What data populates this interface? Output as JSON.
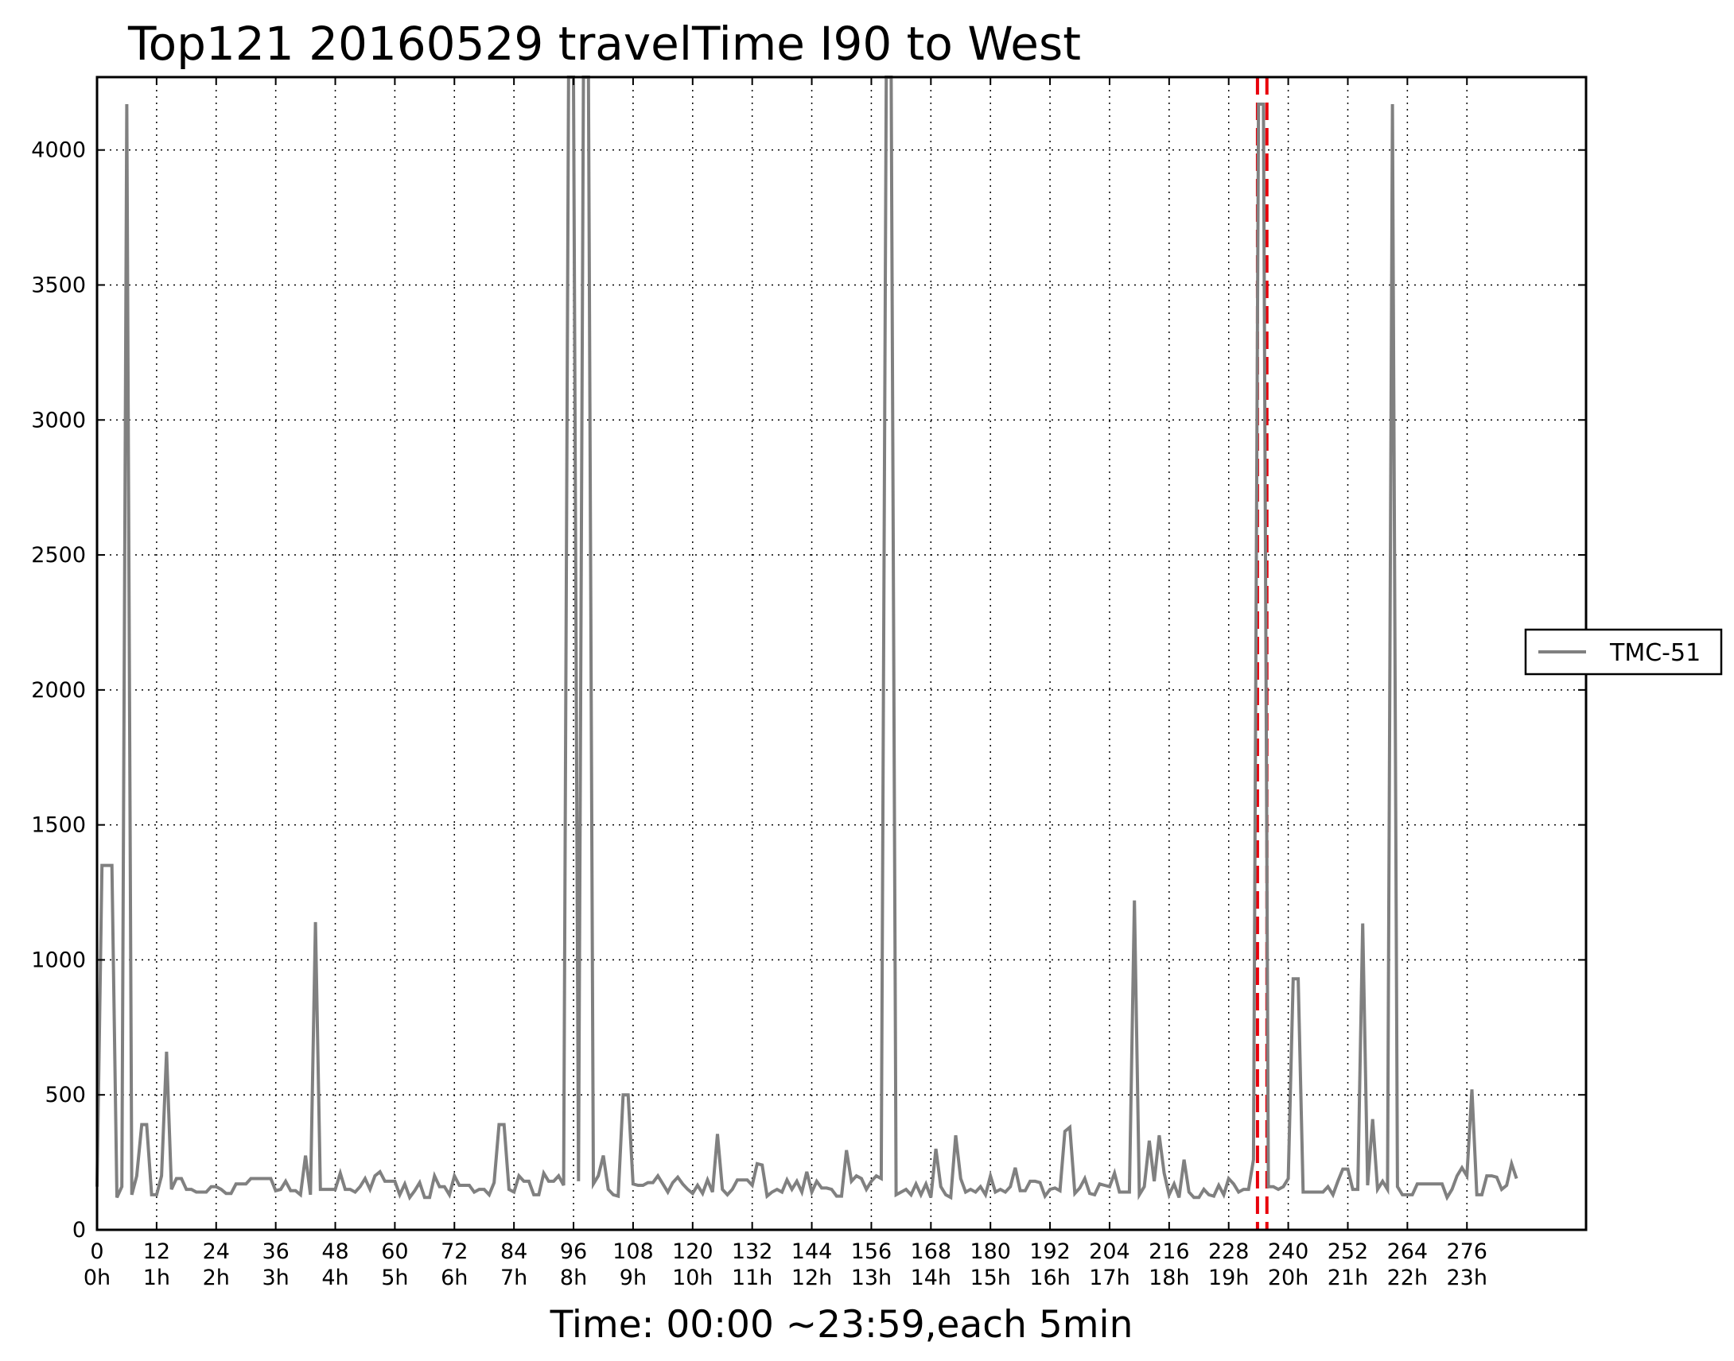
{
  "chart_data": {
    "type": "line",
    "title": "Top121 20160529 travelTime I90 to West",
    "xlabel": "Time: 00:00 ~23:59,each 5min",
    "ylabel": "",
    "xlim": [
      0,
      300
    ],
    "ylim": [
      0,
      4270
    ],
    "grid": true,
    "legend_position": "right",
    "y_ticks": [
      0,
      500,
      1000,
      1500,
      2000,
      2500,
      3000,
      3500,
      4000
    ],
    "x_ticks": [
      {
        "value": 0,
        "label": "0",
        "hour": "0h"
      },
      {
        "value": 12,
        "label": "12",
        "hour": "1h"
      },
      {
        "value": 24,
        "label": "24",
        "hour": "2h"
      },
      {
        "value": 36,
        "label": "36",
        "hour": "3h"
      },
      {
        "value": 48,
        "label": "48",
        "hour": "4h"
      },
      {
        "value": 60,
        "label": "60",
        "hour": "5h"
      },
      {
        "value": 72,
        "label": "72",
        "hour": "6h"
      },
      {
        "value": 84,
        "label": "84",
        "hour": "7h"
      },
      {
        "value": 96,
        "label": "96",
        "hour": "8h"
      },
      {
        "value": 108,
        "label": "108",
        "hour": "9h"
      },
      {
        "value": 120,
        "label": "120",
        "hour": "10h"
      },
      {
        "value": 132,
        "label": "132",
        "hour": "11h"
      },
      {
        "value": 144,
        "label": "144",
        "hour": "12h"
      },
      {
        "value": 156,
        "label": "156",
        "hour": "13h"
      },
      {
        "value": 168,
        "label": "168",
        "hour": "14h"
      },
      {
        "value": 180,
        "label": "180",
        "hour": "15h"
      },
      {
        "value": 192,
        "label": "192",
        "hour": "16h"
      },
      {
        "value": 204,
        "label": "204",
        "hour": "17h"
      },
      {
        "value": 216,
        "label": "216",
        "hour": "18h"
      },
      {
        "value": 228,
        "label": "228",
        "hour": "19h"
      },
      {
        "value": 240,
        "label": "240",
        "hour": "20h"
      },
      {
        "value": 252,
        "label": "252",
        "hour": "21h"
      },
      {
        "value": 264,
        "label": "264",
        "hour": "22h"
      },
      {
        "value": 276,
        "label": "276",
        "hour": "23h"
      }
    ],
    "vlines": [
      {
        "x": 233.8,
        "color": "#e8000b",
        "style": "dashed"
      },
      {
        "x": 235.7,
        "color": "#e8000b",
        "style": "dashed"
      }
    ],
    "series": [
      {
        "name": "TMC-51",
        "color": "#808080",
        "points": [
          [
            0,
            160
          ],
          [
            1,
            1350
          ],
          [
            2,
            1350
          ],
          [
            3,
            1350
          ],
          [
            4,
            120
          ],
          [
            5,
            160
          ],
          [
            6,
            4170
          ],
          [
            7,
            130
          ],
          [
            8,
            200
          ],
          [
            9,
            390
          ],
          [
            10,
            390
          ],
          [
            11,
            130
          ],
          [
            12,
            130
          ],
          [
            13,
            200
          ],
          [
            14,
            660
          ],
          [
            15,
            150
          ],
          [
            16,
            190
          ],
          [
            17,
            190
          ],
          [
            18,
            150
          ],
          [
            19,
            150
          ],
          [
            20,
            140
          ],
          [
            21,
            140
          ],
          [
            22,
            140
          ],
          [
            23,
            160
          ],
          [
            24,
            160
          ],
          [
            25,
            150
          ],
          [
            26,
            135
          ],
          [
            27,
            135
          ],
          [
            28,
            170
          ],
          [
            29,
            170
          ],
          [
            30,
            170
          ],
          [
            31,
            190
          ],
          [
            32,
            190
          ],
          [
            33,
            190
          ],
          [
            34,
            190
          ],
          [
            35,
            190
          ],
          [
            36,
            145
          ],
          [
            37,
            150
          ],
          [
            38,
            180
          ],
          [
            39,
            145
          ],
          [
            40,
            145
          ],
          [
            41,
            130
          ],
          [
            42,
            275
          ],
          [
            43,
            130
          ],
          [
            44,
            1140
          ],
          [
            45,
            150
          ],
          [
            46,
            150
          ],
          [
            47,
            150
          ],
          [
            48,
            150
          ],
          [
            49,
            210
          ],
          [
            50,
            150
          ],
          [
            51,
            150
          ],
          [
            52,
            140
          ],
          [
            53,
            160
          ],
          [
            54,
            190
          ],
          [
            55,
            150
          ],
          [
            56,
            200
          ],
          [
            57,
            215
          ],
          [
            58,
            180
          ],
          [
            59,
            180
          ],
          [
            60,
            180
          ],
          [
            61,
            130
          ],
          [
            62,
            170
          ],
          [
            63,
            120
          ],
          [
            64,
            145
          ],
          [
            65,
            175
          ],
          [
            66,
            120
          ],
          [
            67,
            120
          ],
          [
            68,
            200
          ],
          [
            69,
            160
          ],
          [
            70,
            160
          ],
          [
            71,
            130
          ],
          [
            72,
            200
          ],
          [
            73,
            165
          ],
          [
            74,
            165
          ],
          [
            75,
            165
          ],
          [
            76,
            140
          ],
          [
            77,
            150
          ],
          [
            78,
            150
          ],
          [
            79,
            130
          ],
          [
            80,
            175
          ],
          [
            81,
            390
          ],
          [
            82,
            390
          ],
          [
            83,
            150
          ],
          [
            84,
            140
          ],
          [
            85,
            200
          ],
          [
            86,
            180
          ],
          [
            87,
            180
          ],
          [
            88,
            130
          ],
          [
            89,
            130
          ],
          [
            90,
            210
          ],
          [
            91,
            180
          ],
          [
            92,
            180
          ],
          [
            93,
            200
          ],
          [
            94,
            165
          ],
          [
            95,
            4270
          ],
          [
            96,
            4270
          ],
          [
            97,
            180
          ],
          [
            98,
            4270
          ],
          [
            99,
            4270
          ],
          [
            100,
            170
          ],
          [
            101,
            200
          ],
          [
            102,
            275
          ],
          [
            103,
            150
          ],
          [
            104,
            130
          ],
          [
            105,
            125
          ],
          [
            106,
            500
          ],
          [
            107,
            500
          ],
          [
            108,
            170
          ],
          [
            109,
            165
          ],
          [
            110,
            165
          ],
          [
            111,
            175
          ],
          [
            112,
            175
          ],
          [
            113,
            200
          ],
          [
            114,
            170
          ],
          [
            115,
            140
          ],
          [
            116,
            175
          ],
          [
            117,
            195
          ],
          [
            118,
            170
          ],
          [
            119,
            150
          ],
          [
            120,
            135
          ],
          [
            121,
            165
          ],
          [
            122,
            135
          ],
          [
            123,
            185
          ],
          [
            124,
            140
          ],
          [
            125,
            355
          ],
          [
            126,
            150
          ],
          [
            127,
            130
          ],
          [
            128,
            150
          ],
          [
            129,
            185
          ],
          [
            130,
            185
          ],
          [
            131,
            185
          ],
          [
            132,
            165
          ],
          [
            133,
            245
          ],
          [
            134,
            240
          ],
          [
            135,
            125
          ],
          [
            136,
            140
          ],
          [
            137,
            150
          ],
          [
            138,
            140
          ],
          [
            139,
            185
          ],
          [
            140,
            150
          ],
          [
            141,
            180
          ],
          [
            142,
            140
          ],
          [
            143,
            215
          ],
          [
            144,
            140
          ],
          [
            145,
            180
          ],
          [
            146,
            155
          ],
          [
            147,
            155
          ],
          [
            148,
            150
          ],
          [
            149,
            125
          ],
          [
            150,
            125
          ],
          [
            151,
            295
          ],
          [
            152,
            180
          ],
          [
            153,
            200
          ],
          [
            154,
            190
          ],
          [
            155,
            150
          ],
          [
            156,
            180
          ],
          [
            157,
            200
          ],
          [
            158,
            190
          ],
          [
            159,
            4270
          ],
          [
            160,
            4270
          ],
          [
            161,
            130
          ],
          [
            162,
            140
          ],
          [
            163,
            150
          ],
          [
            164,
            130
          ],
          [
            165,
            170
          ],
          [
            166,
            130
          ],
          [
            167,
            170
          ],
          [
            168,
            120
          ],
          [
            169,
            300
          ],
          [
            170,
            160
          ],
          [
            171,
            130
          ],
          [
            172,
            120
          ],
          [
            173,
            350
          ],
          [
            174,
            190
          ],
          [
            175,
            140
          ],
          [
            176,
            150
          ],
          [
            177,
            140
          ],
          [
            178,
            160
          ],
          [
            179,
            130
          ],
          [
            180,
            200
          ],
          [
            181,
            140
          ],
          [
            182,
            150
          ],
          [
            183,
            140
          ],
          [
            184,
            160
          ],
          [
            185,
            230
          ],
          [
            186,
            145
          ],
          [
            187,
            145
          ],
          [
            188,
            180
          ],
          [
            189,
            180
          ],
          [
            190,
            175
          ],
          [
            191,
            125
          ],
          [
            192,
            150
          ],
          [
            193,
            155
          ],
          [
            194,
            145
          ],
          [
            195,
            365
          ],
          [
            196,
            380
          ],
          [
            197,
            135
          ],
          [
            198,
            155
          ],
          [
            199,
            190
          ],
          [
            200,
            135
          ],
          [
            201,
            130
          ],
          [
            202,
            170
          ],
          [
            203,
            165
          ],
          [
            204,
            160
          ],
          [
            205,
            210
          ],
          [
            206,
            140
          ],
          [
            207,
            140
          ],
          [
            208,
            140
          ],
          [
            209,
            1220
          ],
          [
            210,
            130
          ],
          [
            211,
            160
          ],
          [
            212,
            330
          ],
          [
            213,
            180
          ],
          [
            214,
            350
          ],
          [
            215,
            210
          ],
          [
            216,
            130
          ],
          [
            217,
            170
          ],
          [
            218,
            120
          ],
          [
            219,
            260
          ],
          [
            220,
            140
          ],
          [
            221,
            120
          ],
          [
            222,
            120
          ],
          [
            223,
            150
          ],
          [
            224,
            130
          ],
          [
            225,
            125
          ],
          [
            226,
            165
          ],
          [
            227,
            130
          ],
          [
            228,
            190
          ],
          [
            229,
            170
          ],
          [
            230,
            140
          ],
          [
            231,
            150
          ],
          [
            232,
            150
          ],
          [
            233,
            260
          ],
          [
            234,
            4170
          ],
          [
            235,
            4170
          ],
          [
            236,
            160
          ],
          [
            237,
            160
          ],
          [
            238,
            150
          ],
          [
            239,
            160
          ],
          [
            240,
            190
          ],
          [
            241,
            930
          ],
          [
            242,
            930
          ],
          [
            243,
            140
          ],
          [
            244,
            140
          ],
          [
            245,
            140
          ],
          [
            246,
            140
          ],
          [
            247,
            140
          ],
          [
            248,
            160
          ],
          [
            249,
            130
          ],
          [
            250,
            180
          ],
          [
            251,
            225
          ],
          [
            252,
            225
          ],
          [
            253,
            150
          ],
          [
            254,
            150
          ],
          [
            255,
            1135
          ],
          [
            256,
            165
          ],
          [
            257,
            410
          ],
          [
            258,
            150
          ],
          [
            259,
            180
          ],
          [
            260,
            150
          ],
          [
            261,
            4170
          ],
          [
            262,
            160
          ],
          [
            263,
            130
          ],
          [
            264,
            130
          ],
          [
            265,
            130
          ],
          [
            266,
            170
          ],
          [
            267,
            170
          ],
          [
            268,
            170
          ],
          [
            269,
            170
          ],
          [
            270,
            170
          ],
          [
            271,
            170
          ],
          [
            272,
            120
          ],
          [
            273,
            150
          ],
          [
            274,
            200
          ],
          [
            275,
            230
          ],
          [
            276,
            200
          ],
          [
            277,
            520
          ],
          [
            278,
            130
          ],
          [
            279,
            130
          ],
          [
            280,
            200
          ],
          [
            281,
            200
          ],
          [
            282,
            195
          ],
          [
            283,
            150
          ],
          [
            284,
            165
          ],
          [
            285,
            245
          ],
          [
            286,
            190
          ]
        ]
      }
    ]
  }
}
